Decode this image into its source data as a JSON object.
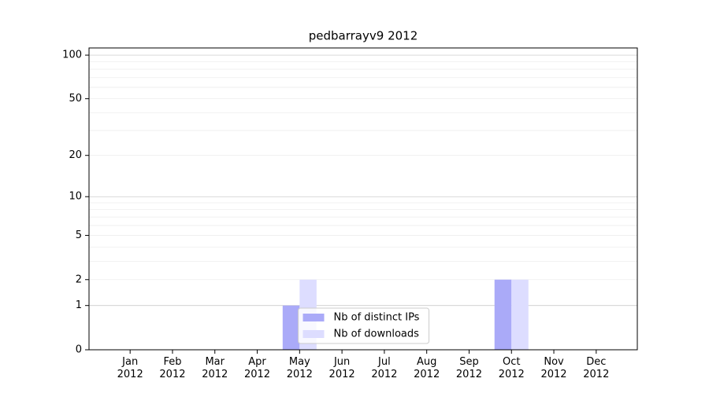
{
  "chart_data": {
    "type": "bar",
    "title": "pedbarrayv9 2012",
    "categories": [
      "Jan\n2012",
      "Feb\n2012",
      "Mar\n2012",
      "Apr\n2012",
      "May\n2012",
      "Jun\n2012",
      "Jul\n2012",
      "Aug\n2012",
      "Sep\n2012",
      "Oct\n2012",
      "Nov\n2012",
      "Dec\n2012"
    ],
    "series": [
      {
        "name": "Nb of distinct IPs",
        "color": "#aaaaf8",
        "values": [
          0,
          0,
          0,
          0,
          1,
          0,
          0,
          0,
          0,
          2,
          0,
          0
        ]
      },
      {
        "name": "Nb of downloads",
        "color": "#ddddff",
        "values": [
          0,
          0,
          0,
          0,
          2,
          0,
          0,
          0,
          0,
          2,
          0,
          0
        ]
      }
    ],
    "yscale": "log1p",
    "ylim": [
      0,
      112
    ],
    "yticks": [
      0,
      1,
      2,
      5,
      10,
      20,
      50,
      100
    ],
    "yminor_grid": [
      3,
      4,
      6,
      7,
      8,
      9,
      30,
      40,
      60,
      70,
      80,
      90
    ],
    "grid": true,
    "legend": "lower center"
  }
}
